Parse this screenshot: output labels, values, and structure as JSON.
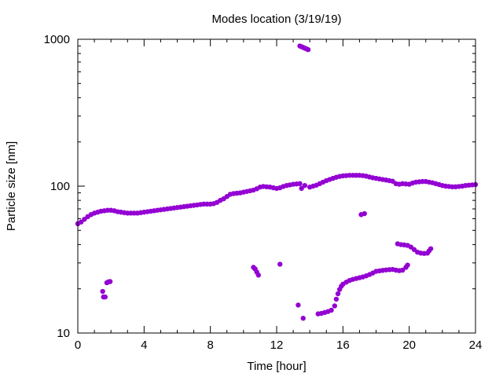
{
  "chart_data": {
    "type": "scatter",
    "title": "Modes location (3/19/19)",
    "xlabel": "Time [hour]",
    "ylabel": "Particle size [nm]",
    "xlim": [
      0,
      24
    ],
    "ylim": [
      10,
      1000
    ],
    "yscale": "log",
    "grid": false,
    "marker_color": "#9400d3",
    "x_ticks": [
      0,
      4,
      8,
      12,
      16,
      20,
      24
    ],
    "x_tick_labels": [
      "0",
      "4",
      "8",
      "12",
      "16",
      "20",
      "24"
    ],
    "y_ticks": [
      10,
      100,
      1000
    ],
    "y_tick_labels": [
      "10",
      "100",
      "1000"
    ],
    "series": [
      {
        "points": [
          [
            0.0,
            55.5
          ],
          [
            0.2,
            57
          ],
          [
            0.4,
            59.5
          ],
          [
            0.6,
            62
          ],
          [
            0.8,
            64
          ],
          [
            1.0,
            65.5
          ],
          [
            1.2,
            66.5
          ],
          [
            1.4,
            67.5
          ],
          [
            1.6,
            68
          ],
          [
            1.8,
            68.5
          ],
          [
            2.0,
            68.5
          ],
          [
            2.2,
            68
          ],
          [
            2.4,
            67
          ],
          [
            2.6,
            66.5
          ],
          [
            2.8,
            66
          ],
          [
            3.0,
            65.5
          ],
          [
            3.2,
            65.5
          ],
          [
            3.4,
            65.5
          ],
          [
            3.6,
            65.5
          ],
          [
            3.8,
            66
          ],
          [
            4.0,
            66.5
          ],
          [
            4.2,
            67
          ],
          [
            4.4,
            67.5
          ],
          [
            4.6,
            68
          ],
          [
            4.8,
            68.5
          ],
          [
            5.0,
            69
          ],
          [
            5.2,
            69.5
          ],
          [
            5.4,
            70
          ],
          [
            5.6,
            70.5
          ],
          [
            5.8,
            71
          ],
          [
            6.0,
            71.5
          ],
          [
            6.2,
            72
          ],
          [
            6.4,
            72.5
          ],
          [
            6.6,
            73
          ],
          [
            6.8,
            73.5
          ],
          [
            7.0,
            74
          ],
          [
            7.2,
            74.5
          ],
          [
            7.4,
            75
          ],
          [
            7.6,
            75.5
          ],
          [
            7.8,
            75.5
          ],
          [
            8.0,
            75.5
          ],
          [
            8.2,
            76
          ],
          [
            8.4,
            77.5
          ],
          [
            8.6,
            80
          ],
          [
            8.8,
            82
          ],
          [
            9.0,
            85
          ],
          [
            9.2,
            88
          ],
          [
            9.4,
            89
          ],
          [
            9.6,
            89.5
          ],
          [
            9.8,
            90
          ],
          [
            10.0,
            91
          ],
          [
            10.2,
            92
          ],
          [
            10.4,
            93
          ],
          [
            10.6,
            94
          ],
          [
            10.8,
            96
          ],
          [
            11.0,
            98.5
          ],
          [
            11.2,
            99.5
          ],
          [
            11.4,
            99
          ],
          [
            11.6,
            98.5
          ],
          [
            11.8,
            97.5
          ],
          [
            12.0,
            96.5
          ],
          [
            12.2,
            97.5
          ],
          [
            12.4,
            99.5
          ],
          [
            12.6,
            101
          ],
          [
            12.8,
            102
          ],
          [
            13.0,
            103
          ],
          [
            13.2,
            103.5
          ],
          [
            13.4,
            104
          ],
          [
            13.5,
            96.5
          ],
          [
            13.7,
            101
          ],
          [
            14.0,
            98.5
          ],
          [
            14.2,
            100
          ],
          [
            14.4,
            101.5
          ],
          [
            14.6,
            104
          ],
          [
            14.8,
            106.5
          ],
          [
            15.0,
            109
          ],
          [
            15.2,
            111
          ],
          [
            15.4,
            113
          ],
          [
            15.6,
            115
          ],
          [
            15.8,
            116.5
          ],
          [
            16.0,
            117.5
          ],
          [
            16.2,
            118
          ],
          [
            16.4,
            118.5
          ],
          [
            16.6,
            118.5
          ],
          [
            16.8,
            118.5
          ],
          [
            17.0,
            118.5
          ],
          [
            17.2,
            118
          ],
          [
            17.4,
            117
          ],
          [
            17.6,
            115.5
          ],
          [
            17.8,
            114
          ],
          [
            18.0,
            113
          ],
          [
            18.2,
            112
          ],
          [
            18.4,
            111
          ],
          [
            18.6,
            110
          ],
          [
            18.8,
            109
          ],
          [
            19.0,
            108
          ],
          [
            19.2,
            104
          ],
          [
            19.4,
            103
          ],
          [
            19.6,
            104
          ],
          [
            19.8,
            103.5
          ],
          [
            20.0,
            103
          ],
          [
            20.2,
            105
          ],
          [
            20.4,
            106.5
          ],
          [
            20.6,
            107
          ],
          [
            20.8,
            107.5
          ],
          [
            21.0,
            107.5
          ],
          [
            21.2,
            106.5
          ],
          [
            21.4,
            105.5
          ],
          [
            21.6,
            104
          ],
          [
            21.8,
            102.5
          ],
          [
            22.0,
            101
          ],
          [
            22.2,
            100
          ],
          [
            22.4,
            99.5
          ],
          [
            22.6,
            99
          ],
          [
            22.8,
            99
          ],
          [
            23.0,
            99.5
          ],
          [
            23.2,
            100
          ],
          [
            23.4,
            101
          ],
          [
            23.6,
            101.5
          ],
          [
            23.8,
            102
          ],
          [
            24.0,
            102.5
          ]
        ]
      },
      {
        "points": [
          [
            13.4,
            900
          ],
          [
            13.5,
            890
          ],
          [
            13.6,
            880
          ],
          [
            13.7,
            870
          ],
          [
            13.8,
            860
          ],
          [
            13.9,
            850
          ]
        ]
      },
      {
        "points": [
          [
            1.5,
            19.2
          ],
          [
            1.55,
            17.6
          ],
          [
            1.65,
            17.6
          ],
          [
            1.75,
            22.0
          ],
          [
            1.85,
            22.3
          ],
          [
            1.95,
            22.4
          ],
          [
            10.6,
            28.0
          ],
          [
            10.7,
            27.3
          ],
          [
            10.8,
            26.0
          ],
          [
            10.9,
            24.8
          ],
          [
            12.2,
            29.4
          ],
          [
            13.3,
            15.5
          ],
          [
            13.6,
            12.6
          ],
          [
            17.1,
            64.0
          ],
          [
            17.3,
            65.0
          ]
        ]
      },
      {
        "points": [
          [
            14.5,
            13.5
          ],
          [
            14.7,
            13.6
          ],
          [
            14.9,
            13.8
          ],
          [
            15.1,
            14.0
          ],
          [
            15.3,
            14.3
          ],
          [
            15.5,
            15.3
          ],
          [
            15.6,
            17.0
          ],
          [
            15.7,
            18.5
          ],
          [
            15.8,
            19.8
          ],
          [
            15.9,
            20.8
          ],
          [
            16.0,
            21.5
          ],
          [
            16.2,
            22.2
          ],
          [
            16.4,
            22.8
          ],
          [
            16.6,
            23.2
          ],
          [
            16.8,
            23.5
          ],
          [
            17.0,
            23.8
          ],
          [
            17.2,
            24.1
          ],
          [
            17.4,
            24.5
          ],
          [
            17.6,
            25.0
          ],
          [
            17.8,
            25.6
          ],
          [
            18.0,
            26.3
          ],
          [
            18.2,
            26.5
          ],
          [
            18.4,
            26.7
          ],
          [
            18.6,
            26.9
          ],
          [
            18.8,
            27.0
          ],
          [
            19.0,
            27.1
          ],
          [
            19.2,
            26.8
          ],
          [
            19.4,
            26.6
          ],
          [
            19.6,
            26.8
          ],
          [
            19.8,
            28.0
          ],
          [
            19.9,
            29.0
          ]
        ]
      },
      {
        "points": [
          [
            19.3,
            40.5
          ],
          [
            19.5,
            40.0
          ],
          [
            19.7,
            39.8
          ],
          [
            19.9,
            39.5
          ],
          [
            20.1,
            38.5
          ],
          [
            20.3,
            37.0
          ],
          [
            20.5,
            35.5
          ],
          [
            20.7,
            35.0
          ],
          [
            20.9,
            34.8
          ],
          [
            21.1,
            35.0
          ],
          [
            21.2,
            36.2
          ],
          [
            21.3,
            37.5
          ]
        ]
      }
    ]
  }
}
